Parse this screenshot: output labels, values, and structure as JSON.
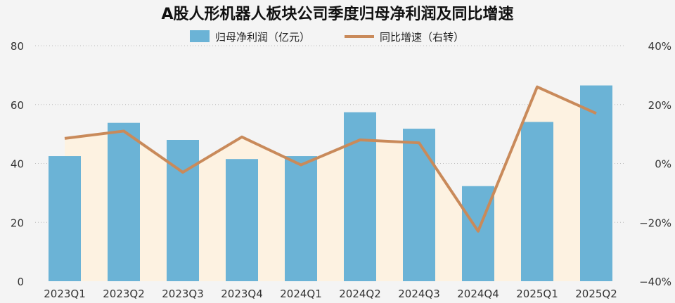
{
  "chart_data": {
    "type": "bar",
    "title": "A股人形机器人板块公司季度归母净利润及同比增速",
    "categories": [
      "2023Q1",
      "2023Q2",
      "2023Q3",
      "2023Q4",
      "2024Q1",
      "2024Q2",
      "2024Q3",
      "2024Q4",
      "2025Q1",
      "2025Q2"
    ],
    "series": [
      {
        "name": "归母净利润（亿元）",
        "type": "bar",
        "axis": "left",
        "color": "#6bb3d6",
        "values": [
          42.5,
          53.8,
          48,
          41.5,
          42.5,
          57.4,
          51.8,
          32.3,
          54.1,
          66.5
        ]
      },
      {
        "name": "同比增速（右转）",
        "type": "line",
        "axis": "right",
        "color": "#c98a5a",
        "values": [
          8.5,
          11,
          -3,
          9,
          -0.5,
          8,
          7,
          -23,
          26,
          17
        ]
      }
    ],
    "ylim": [
      0,
      80
    ],
    "yticks": [
      "0",
      "20",
      "40",
      "60",
      "80"
    ],
    "y2lim": [
      -40,
      40
    ],
    "y2ticks": [
      "−40%",
      "−20%",
      "0%",
      "20%",
      "40%"
    ],
    "area_fill_color": "#fdf2e1",
    "grid": true,
    "legend_position": "top-center"
  }
}
